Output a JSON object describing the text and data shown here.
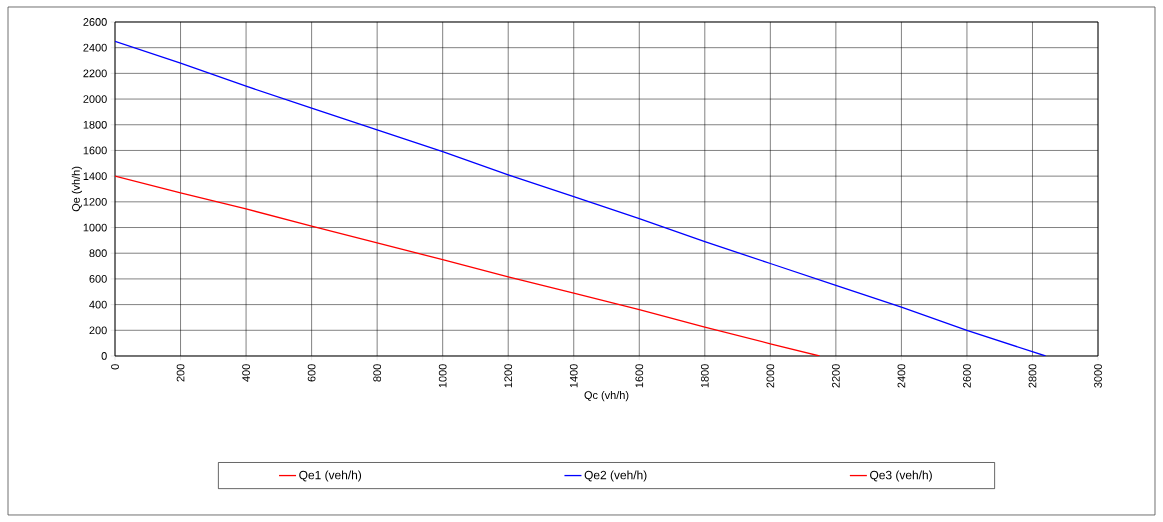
{
  "chart_data": {
    "type": "line",
    "xlabel": "Qc (vh/h)",
    "ylabel": "Qe (vh/h)",
    "x": [
      0,
      200,
      400,
      600,
      800,
      1000,
      1200,
      1400,
      1600,
      1800,
      2000,
      2150
    ],
    "series": [
      {
        "name": "Qe1 (veh/h)",
        "color": "#ff0000",
        "values": [
          1400,
          1270,
          1145,
          1010,
          880,
          750,
          615,
          490,
          360,
          225,
          95,
          0
        ]
      },
      {
        "name": "Qe2 (veh/h)",
        "color": "#0000ff",
        "x": [
          0,
          200,
          400,
          600,
          800,
          1000,
          1200,
          1400,
          1600,
          1800,
          2000,
          2200,
          2400,
          2600,
          2840
        ],
        "values": [
          2450,
          2280,
          2100,
          1930,
          1760,
          1590,
          1410,
          1240,
          1070,
          890,
          720,
          550,
          380,
          200,
          0
        ]
      },
      {
        "name": "Qe3 (veh/h)",
        "color": "#ff0000",
        "values": [
          null,
          null,
          null,
          null,
          null,
          null,
          null,
          null,
          null,
          null,
          null,
          null
        ]
      }
    ],
    "xlim": [
      0,
      3000
    ],
    "xticks": [
      0,
      200,
      400,
      600,
      800,
      1000,
      1200,
      1400,
      1600,
      1800,
      2000,
      2200,
      2400,
      2600,
      2800,
      3000
    ],
    "ylim": [
      0,
      2600
    ],
    "yticks": [
      0,
      200,
      400,
      600,
      800,
      1000,
      1200,
      1400,
      1600,
      1800,
      2000,
      2200,
      2400,
      2600
    ],
    "grid": true,
    "legend": "bottom",
    "marker": "none",
    "line_style": "solid"
  }
}
